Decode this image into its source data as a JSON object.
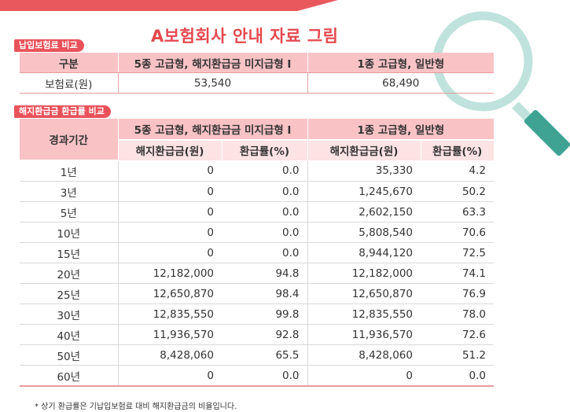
{
  "title": "A보험회사 안내 자료 그림",
  "section1": {
    "tag": "납입보험료 비교",
    "col_label": "구분",
    "plan_a": "5종 고급형, 해지환급금 미지급형 I",
    "plan_b": "1종 고급형, 일반형",
    "row_label": "보험료(원)",
    "premium_a": "53,540",
    "premium_b": "68,490"
  },
  "section2": {
    "tag": "해지환급금 환급률 비교",
    "period_label": "경과기간",
    "plan_a": "5종 고급형, 해지환급금 미지급형 I",
    "plan_b": "1종 고급형, 일반형",
    "refund_label": "해지환급금(원)",
    "rate_label": "환급률(%)",
    "rows": [
      {
        "year": "1년",
        "a_refund": "0",
        "a_rate": "0.0",
        "b_refund": "35,330",
        "b_rate": "4.2"
      },
      {
        "year": "3년",
        "a_refund": "0",
        "a_rate": "0.0",
        "b_refund": "1,245,670",
        "b_rate": "50.2"
      },
      {
        "year": "5년",
        "a_refund": "0",
        "a_rate": "0.0",
        "b_refund": "2,602,150",
        "b_rate": "63.3"
      },
      {
        "year": "10년",
        "a_refund": "0",
        "a_rate": "0.0",
        "b_refund": "5,808,540",
        "b_rate": "70.6"
      },
      {
        "year": "15년",
        "a_refund": "0",
        "a_rate": "0.0",
        "b_refund": "8,944,120",
        "b_rate": "72.5"
      },
      {
        "year": "20년",
        "a_refund": "12,182,000",
        "a_rate": "94.8",
        "b_refund": "12,182,000",
        "b_rate": "74.1"
      },
      {
        "year": "25년",
        "a_refund": "12,650,870",
        "a_rate": "98.4",
        "b_refund": "12,650,870",
        "b_rate": "76.9"
      },
      {
        "year": "30년",
        "a_refund": "12,835,550",
        "a_rate": "99.8",
        "b_refund": "12,835,550",
        "b_rate": "78.0"
      },
      {
        "year": "40년",
        "a_refund": "11,936,570",
        "a_rate": "92.8",
        "b_refund": "11,936,570",
        "b_rate": "72.6"
      },
      {
        "year": "50년",
        "a_refund": "8,428,060",
        "a_rate": "65.5",
        "b_refund": "8,428,060",
        "b_rate": "51.2"
      },
      {
        "year": "60년",
        "a_refund": "0",
        "a_rate": "0.0",
        "b_refund": "0",
        "b_rate": "0.0"
      }
    ]
  },
  "footnote": "* 상기 환급률은 기납입보험료 대비 해지환급금의 비율입니다.",
  "icons": {
    "decoration": "magnifier-icon"
  },
  "colors": {
    "accent": "#e6484e",
    "header": "#f9c3c6",
    "subheader": "#fde3e4",
    "magnifier_ring": "#bfe3dc",
    "magnifier_handle": "#3fa394"
  }
}
